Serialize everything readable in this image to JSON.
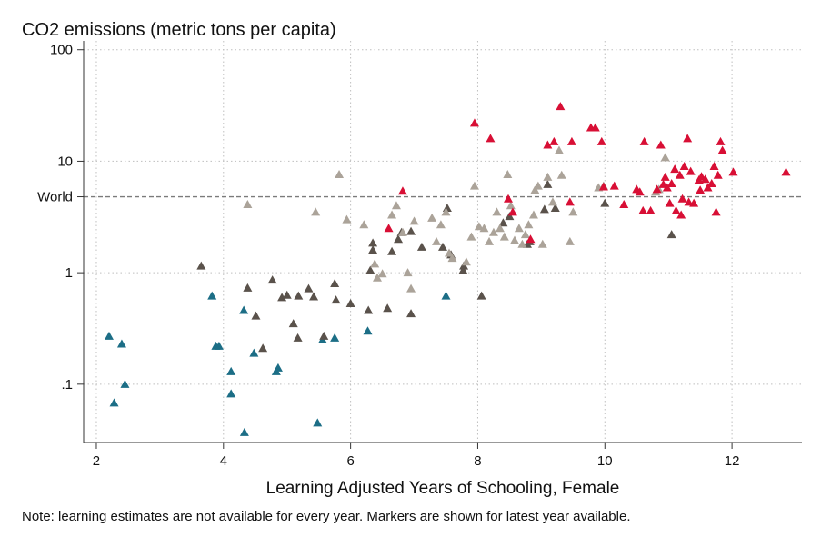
{
  "chart_data": {
    "type": "scatter",
    "title": "CO2 emissions (metric tons per capita)",
    "xlabel": "Learning Adjusted Years of Schooling, Female",
    "ylabel": "",
    "note": "Note: learning estimates are not available for every year. Markers are shown for latest year available.",
    "x_scale": "linear",
    "y_scale": "log",
    "xlim": [
      1.8,
      13.1
    ],
    "ylim": [
      0.03,
      120
    ],
    "x_ticks": [
      2,
      4,
      6,
      8,
      10,
      12
    ],
    "x_tick_labels": [
      "2",
      "4",
      "6",
      "8",
      "10",
      "12"
    ],
    "y_ticks": [
      0.1,
      1,
      10,
      100
    ],
    "y_tick_labels": [
      ".1",
      "1",
      "10",
      "100"
    ],
    "grid": "dotted",
    "marker": "triangle",
    "reference_line": {
      "label": "World",
      "value": 4.8
    },
    "colors": {
      "teal": "#1c6e86",
      "dark": "#5a524b",
      "light": "#aba399",
      "red": "#d80f35",
      "reference": "#7b7b7b",
      "grid": "#bfbfbf"
    },
    "series": [
      {
        "color_key": "teal",
        "points": [
          [
            2.2,
            0.27
          ],
          [
            2.4,
            0.23
          ],
          [
            2.28,
            0.068
          ],
          [
            2.45,
            0.1
          ],
          [
            3.82,
            0.62
          ],
          [
            3.88,
            0.22
          ],
          [
            3.93,
            0.22
          ],
          [
            4.12,
            0.13
          ],
          [
            4.12,
            0.082
          ],
          [
            4.32,
            0.46
          ],
          [
            4.48,
            0.19
          ],
          [
            4.33,
            0.037
          ],
          [
            4.83,
            0.13
          ],
          [
            4.86,
            0.14
          ],
          [
            5.48,
            0.045
          ],
          [
            5.56,
            0.25
          ],
          [
            5.75,
            0.26
          ],
          [
            6.27,
            0.3
          ],
          [
            7.5,
            0.62
          ]
        ]
      },
      {
        "color_key": "dark",
        "points": [
          [
            3.65,
            1.15
          ],
          [
            4.38,
            0.73
          ],
          [
            4.51,
            0.41
          ],
          [
            4.62,
            0.21
          ],
          [
            4.77,
            0.86
          ],
          [
            4.92,
            0.6
          ],
          [
            5.0,
            0.63
          ],
          [
            5.1,
            0.35
          ],
          [
            5.17,
            0.26
          ],
          [
            5.18,
            0.62
          ],
          [
            5.34,
            0.72
          ],
          [
            5.42,
            0.61
          ],
          [
            5.58,
            0.27
          ],
          [
            5.75,
            0.8
          ],
          [
            5.77,
            0.57
          ],
          [
            6.0,
            0.53
          ],
          [
            6.28,
            0.46
          ],
          [
            6.31,
            1.05
          ],
          [
            6.35,
            1.6
          ],
          [
            6.35,
            1.85
          ],
          [
            6.58,
            0.48
          ],
          [
            6.65,
            1.55
          ],
          [
            6.75,
            2.0
          ],
          [
            6.8,
            2.3
          ],
          [
            6.95,
            0.43
          ],
          [
            6.95,
            2.35
          ],
          [
            7.12,
            1.7
          ],
          [
            7.45,
            1.7
          ],
          [
            7.52,
            3.8
          ],
          [
            7.58,
            1.45
          ],
          [
            7.77,
            1.05
          ],
          [
            7.78,
            1.15
          ],
          [
            8.06,
            0.62
          ],
          [
            8.4,
            2.8
          ],
          [
            8.5,
            3.2
          ],
          [
            8.78,
            1.8
          ],
          [
            8.82,
            1.9
          ],
          [
            9.05,
            3.7
          ],
          [
            9.1,
            6.2
          ],
          [
            9.22,
            3.8
          ],
          [
            10.0,
            4.2
          ],
          [
            11.05,
            2.2
          ]
        ]
      },
      {
        "color_key": "light",
        "points": [
          [
            4.38,
            4.1
          ],
          [
            5.45,
            3.5
          ],
          [
            5.82,
            7.6
          ],
          [
            5.94,
            3.0
          ],
          [
            6.21,
            2.7
          ],
          [
            6.38,
            1.2
          ],
          [
            6.42,
            0.9
          ],
          [
            6.5,
            0.98
          ],
          [
            6.65,
            3.3
          ],
          [
            6.72,
            4.0
          ],
          [
            6.82,
            2.3
          ],
          [
            6.9,
            1.0
          ],
          [
            6.95,
            0.72
          ],
          [
            7.0,
            2.9
          ],
          [
            7.28,
            3.1
          ],
          [
            7.35,
            1.9
          ],
          [
            7.42,
            2.7
          ],
          [
            7.5,
            3.5
          ],
          [
            7.55,
            1.5
          ],
          [
            7.6,
            1.35
          ],
          [
            7.82,
            1.25
          ],
          [
            7.9,
            2.1
          ],
          [
            7.95,
            6.0
          ],
          [
            8.02,
            2.6
          ],
          [
            8.1,
            2.5
          ],
          [
            8.18,
            1.9
          ],
          [
            8.25,
            2.3
          ],
          [
            8.3,
            3.5
          ],
          [
            8.35,
            2.5
          ],
          [
            8.42,
            2.1
          ],
          [
            8.47,
            7.6
          ],
          [
            8.52,
            4.0
          ],
          [
            8.58,
            1.95
          ],
          [
            8.65,
            2.5
          ],
          [
            8.7,
            1.8
          ],
          [
            8.75,
            2.2
          ],
          [
            8.8,
            2.7
          ],
          [
            8.88,
            3.3
          ],
          [
            8.9,
            5.5
          ],
          [
            8.95,
            6.0
          ],
          [
            9.02,
            1.8
          ],
          [
            9.1,
            7.2
          ],
          [
            9.18,
            4.3
          ],
          [
            9.28,
            12.5
          ],
          [
            9.32,
            7.5
          ],
          [
            9.45,
            1.9
          ],
          [
            9.5,
            3.5
          ],
          [
            9.9,
            5.8
          ],
          [
            9.98,
            6.0
          ],
          [
            10.8,
            5.3
          ],
          [
            10.85,
            5.6
          ],
          [
            10.95,
            10.8
          ]
        ]
      },
      {
        "color_key": "red",
        "points": [
          [
            6.6,
            2.5
          ],
          [
            6.82,
            5.4
          ],
          [
            7.95,
            22.0
          ],
          [
            8.2,
            16.0
          ],
          [
            8.48,
            4.6
          ],
          [
            8.55,
            3.5
          ],
          [
            8.83,
            2.0
          ],
          [
            9.1,
            14.0
          ],
          [
            9.2,
            15.0
          ],
          [
            9.3,
            31.0
          ],
          [
            9.45,
            4.3
          ],
          [
            9.48,
            15.0
          ],
          [
            9.78,
            20.0
          ],
          [
            9.85,
            20.0
          ],
          [
            9.95,
            15.0
          ],
          [
            9.98,
            5.9
          ],
          [
            10.15,
            6.0
          ],
          [
            10.3,
            4.1
          ],
          [
            10.5,
            5.6
          ],
          [
            10.55,
            5.3
          ],
          [
            10.6,
            3.6
          ],
          [
            10.62,
            15.0
          ],
          [
            10.72,
            3.6
          ],
          [
            10.82,
            5.6
          ],
          [
            10.88,
            14.0
          ],
          [
            10.92,
            6.2
          ],
          [
            10.95,
            7.2
          ],
          [
            10.98,
            5.8
          ],
          [
            11.02,
            4.2
          ],
          [
            11.05,
            6.3
          ],
          [
            11.1,
            8.5
          ],
          [
            11.12,
            3.6
          ],
          [
            11.18,
            7.5
          ],
          [
            11.2,
            3.3
          ],
          [
            11.22,
            4.6
          ],
          [
            11.25,
            9.0
          ],
          [
            11.3,
            16.0
          ],
          [
            11.32,
            4.3
          ],
          [
            11.35,
            8.1
          ],
          [
            11.4,
            4.2
          ],
          [
            11.48,
            6.8
          ],
          [
            11.5,
            5.5
          ],
          [
            11.52,
            7.3
          ],
          [
            11.58,
            6.9
          ],
          [
            11.62,
            5.8
          ],
          [
            11.68,
            6.3
          ],
          [
            11.72,
            9.0
          ],
          [
            11.75,
            3.5
          ],
          [
            11.78,
            7.5
          ],
          [
            11.82,
            15.0
          ],
          [
            11.85,
            12.5
          ],
          [
            12.02,
            8.0
          ],
          [
            12.85,
            8.0
          ]
        ]
      }
    ]
  }
}
